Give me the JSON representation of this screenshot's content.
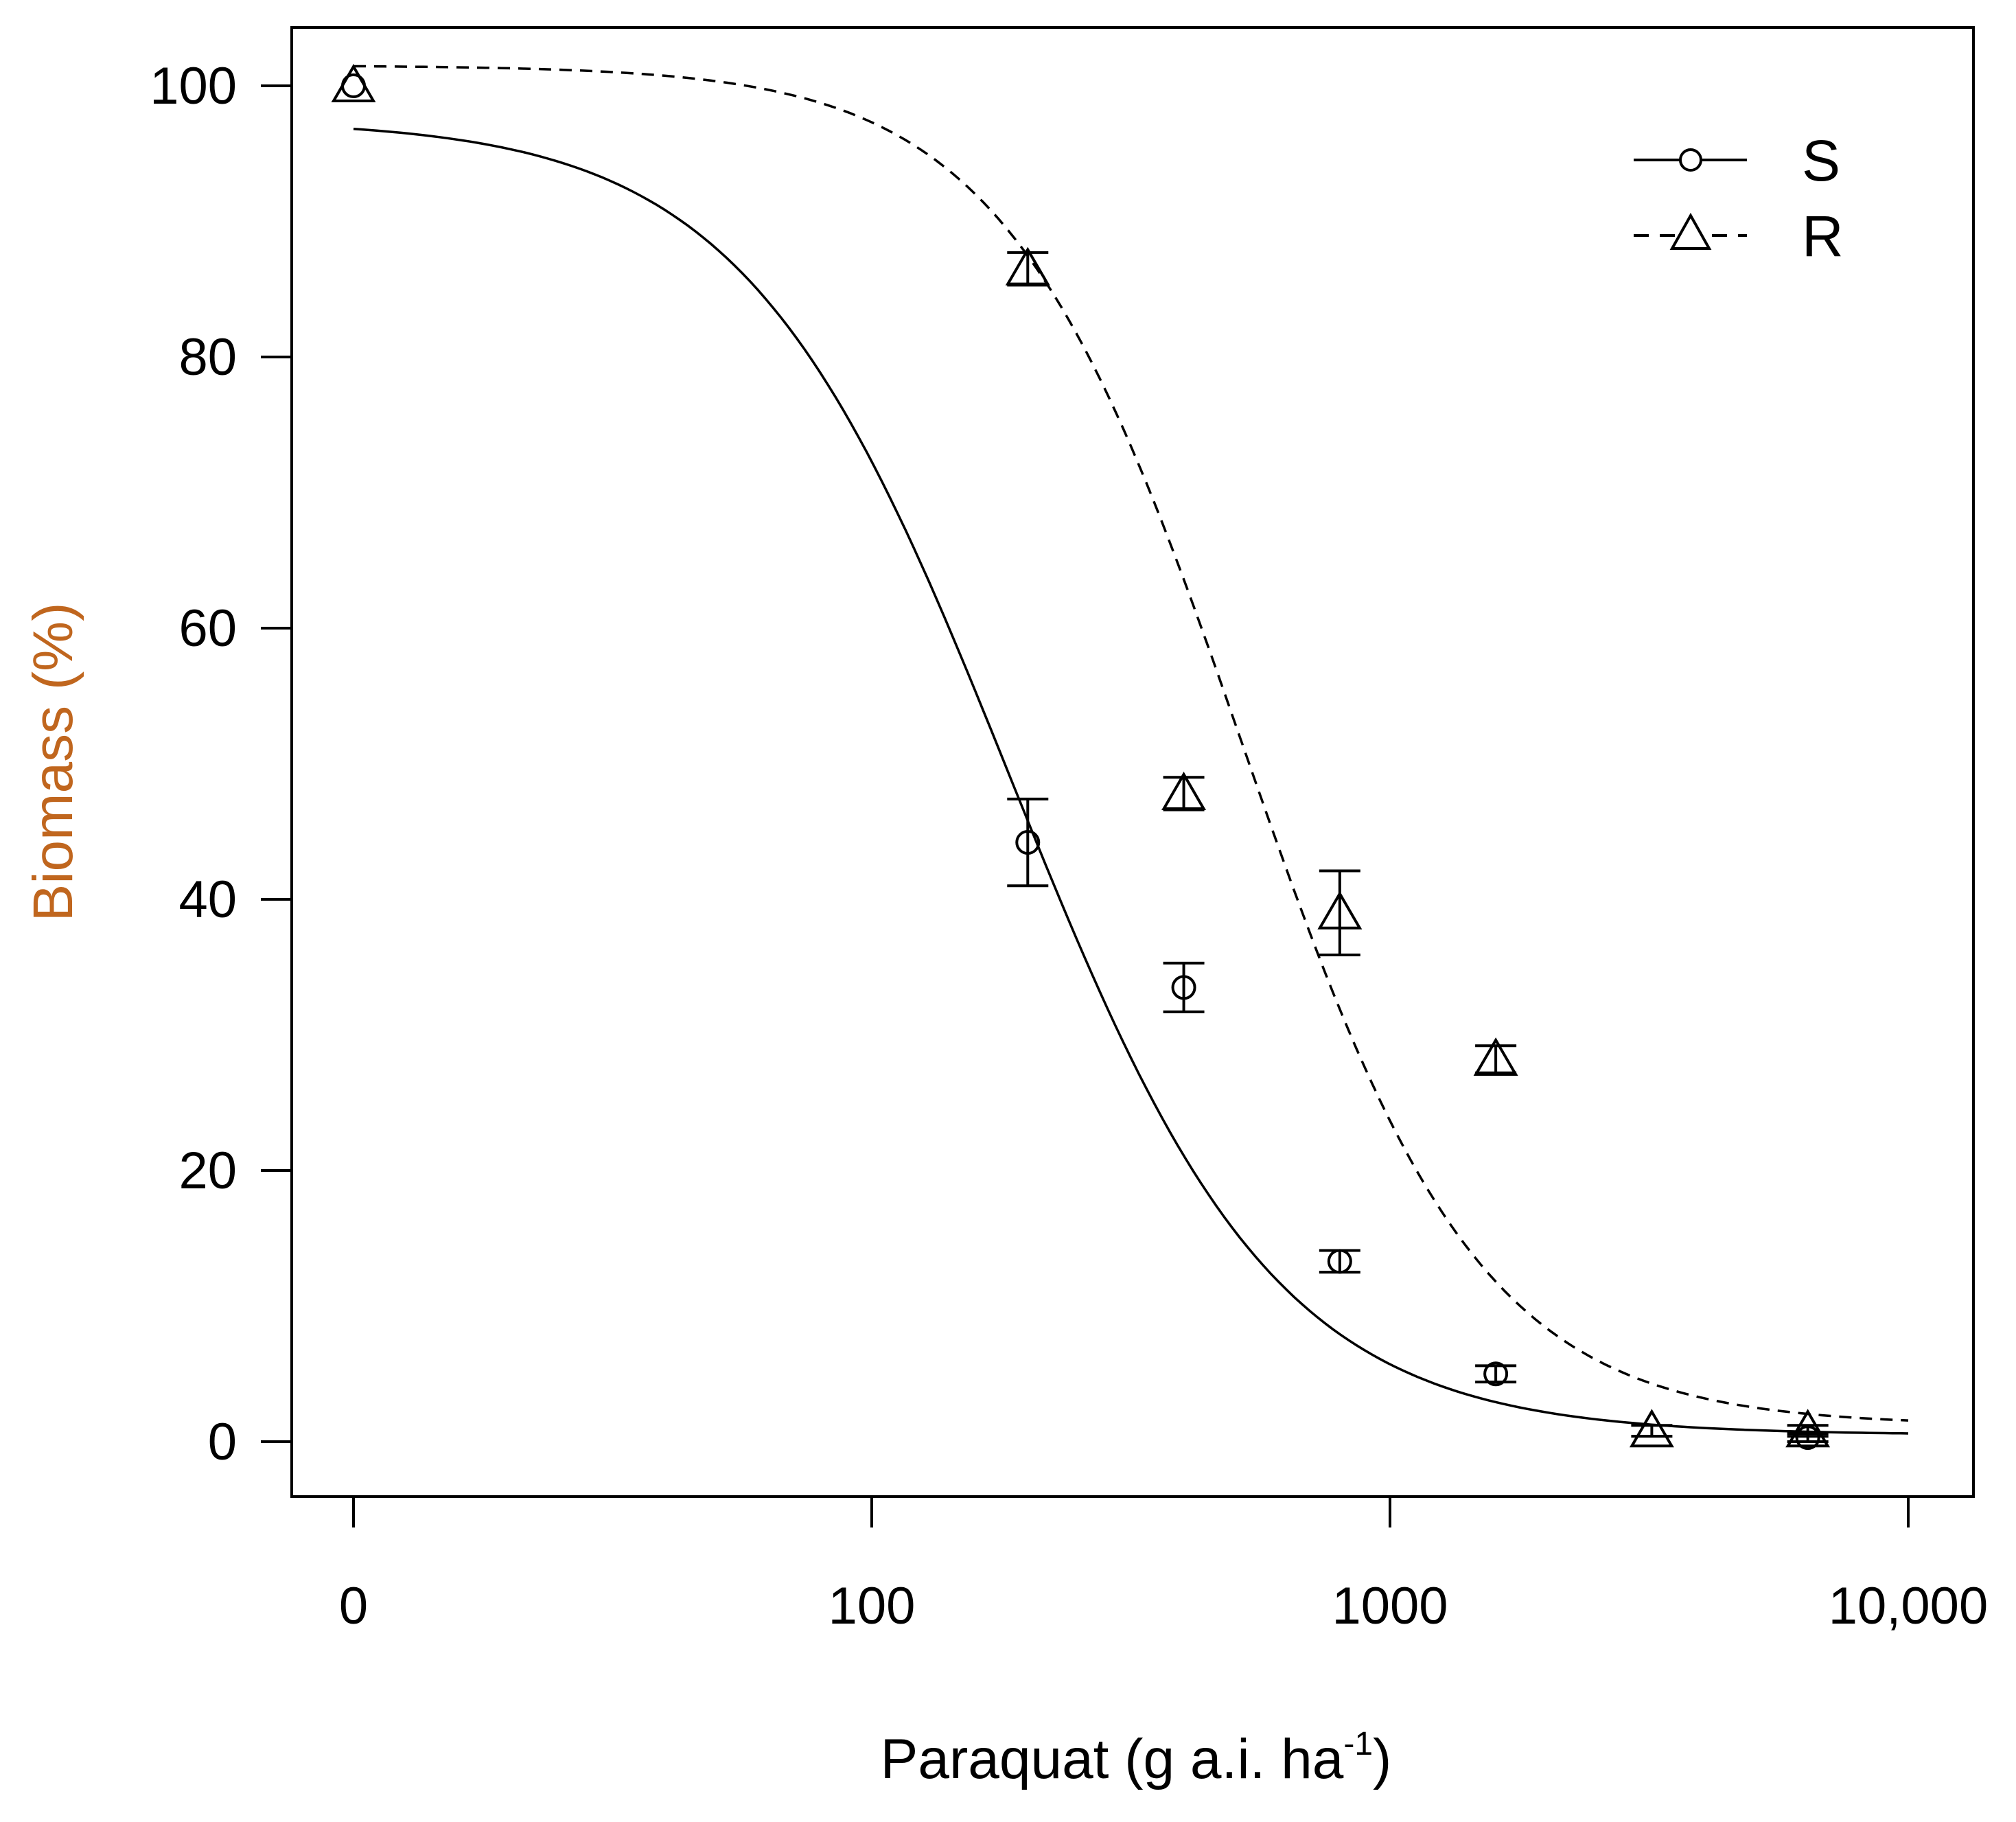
{
  "chart_data": {
    "type": "scatter",
    "title": "",
    "xlabel": "Paraquat (g a.i. ha",
    "xlabel_sup": "-1",
    "xlabel_close": ")",
    "ylabel": "Biomass (%)",
    "xscale": "log (0 plotted at left position)",
    "xlim": [
      0,
      10000
    ],
    "ylim": [
      0,
      100
    ],
    "x_ticks": [
      {
        "value": 0,
        "label": "0"
      },
      {
        "value": 100,
        "label": "100"
      },
      {
        "value": 1000,
        "label": "1000"
      },
      {
        "value": 10000,
        "label": "10,000"
      }
    ],
    "y_ticks": [
      {
        "value": 0,
        "label": "0"
      },
      {
        "value": 20,
        "label": "20"
      },
      {
        "value": 40,
        "label": "40"
      },
      {
        "value": 60,
        "label": "60"
      },
      {
        "value": 80,
        "label": "80"
      },
      {
        "value": 100,
        "label": "100"
      }
    ],
    "legend_position": "top-right",
    "series": [
      {
        "name": "S",
        "marker": "circle",
        "line_style": "solid",
        "points": [
          {
            "x": 0,
            "y": 100,
            "err": 0
          },
          {
            "x": 200,
            "y": 44.2,
            "err": 3.2
          },
          {
            "x": 400,
            "y": 33.5,
            "err": 1.8
          },
          {
            "x": 800,
            "y": 13.3,
            "err": 0.8
          },
          {
            "x": 1600,
            "y": 5.0,
            "err": 0.6
          },
          {
            "x": 6400,
            "y": 0.3,
            "err": 0.3
          }
        ],
        "fit": {
          "top": 97.5,
          "bottom": 0.5,
          "ed50": 185,
          "slope": 1.7
        }
      },
      {
        "name": "R",
        "marker": "triangle",
        "line_style": "dashed",
        "points": [
          {
            "x": 0,
            "y": 100,
            "err": 0
          },
          {
            "x": 200,
            "y": 86.5,
            "err": 1.2
          },
          {
            "x": 400,
            "y": 47.8,
            "err": 1.2
          },
          {
            "x": 800,
            "y": 39.0,
            "err": 3.1
          },
          {
            "x": 1600,
            "y": 28.2,
            "err": 1.0
          },
          {
            "x": 3200,
            "y": 0.8,
            "err": 0.4
          },
          {
            "x": 6400,
            "y": 0.8,
            "err": 0.4
          }
        ],
        "fit": {
          "top": 101.5,
          "bottom": 1.2,
          "ed50": 520,
          "slope": 1.9
        }
      }
    ]
  }
}
